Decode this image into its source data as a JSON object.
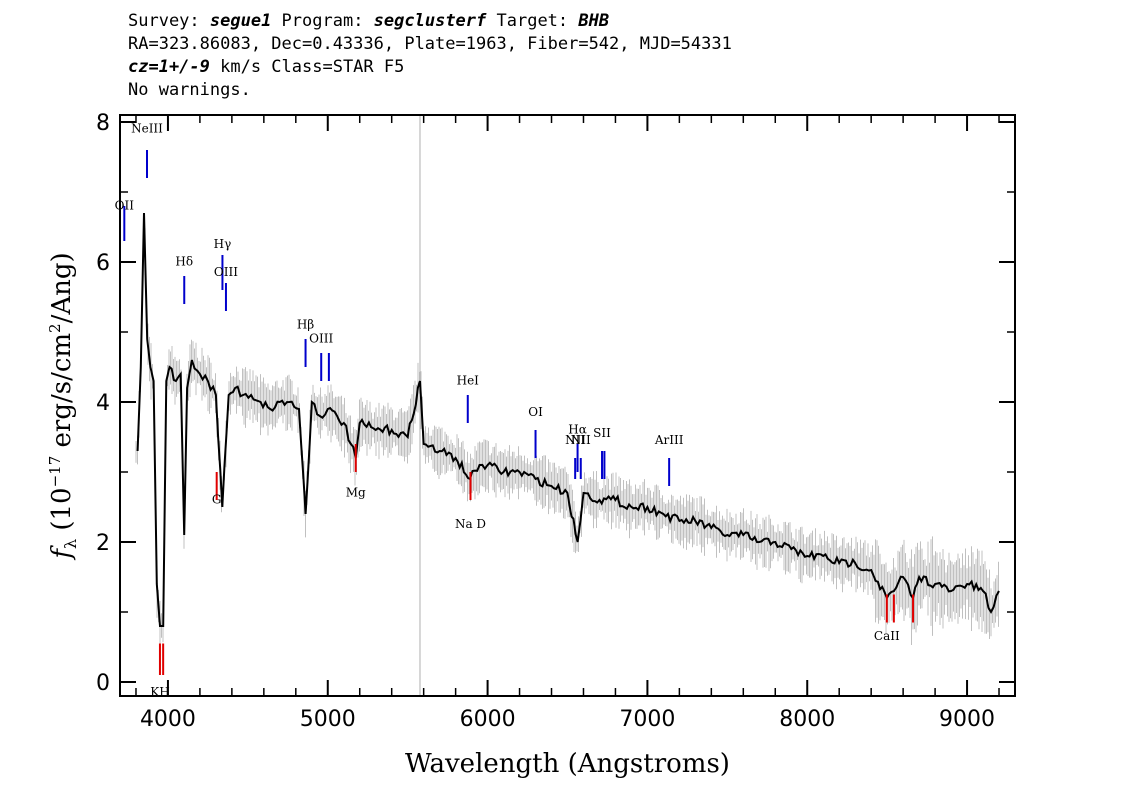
{
  "header": {
    "line1": {
      "survey_label": "Survey: ",
      "survey": "segue1",
      "program_label": " Program: ",
      "program": "segclusterf",
      "target_label": " Target: ",
      "target": "BHB"
    },
    "line2": "RA=323.86083, Dec=0.43336, Plate=1963, Fiber=542, MJD=54331",
    "line3": {
      "cz": "cz=1+/-9",
      "rest": " km/s Class=STAR F5"
    },
    "line4": "No warnings."
  },
  "chart_data": {
    "type": "line",
    "title": "",
    "xlabel": "Wavelength (Angstroms)",
    "ylabel": "f_λ (10^-17 erg/s/cm^2/Ang)",
    "ylabel_parts": {
      "f": "f",
      "sub": "λ",
      "a": " (10",
      "exp1": "−17",
      "b": " erg/s/cm",
      "exp2": "2",
      "c": "/Ang)"
    },
    "xlim": [
      3700,
      9300
    ],
    "ylim": [
      -0.2,
      8.1
    ],
    "xticks": [
      4000,
      5000,
      6000,
      7000,
      8000,
      9000
    ],
    "yticks": [
      0,
      2,
      4,
      6,
      8
    ],
    "colors": {
      "spectrum": "#000000",
      "noise": "#c0c0c0",
      "emission": "#0000cc",
      "absorption": "#e00000",
      "vline": "#b0b0b0"
    },
    "vline_x": 5577,
    "series": [
      {
        "name": "spectrum",
        "x": [
          3810,
          3830,
          3850,
          3870,
          3890,
          3910,
          3930,
          3950,
          3970,
          3990,
          4010,
          4050,
          4080,
          4102,
          4120,
          4150,
          4200,
          4250,
          4300,
          4340,
          4380,
          4420,
          4470,
          4520,
          4580,
          4640,
          4700,
          4760,
          4820,
          4861,
          4900,
          4950,
          5000,
          5100,
          5175,
          5200,
          5300,
          5400,
          5500,
          5577,
          5600,
          5700,
          5800,
          5890,
          5950,
          6000,
          6100,
          6200,
          6300,
          6400,
          6500,
          6563,
          6600,
          6700,
          6800,
          6900,
          7000,
          7100,
          7200,
          7300,
          7400,
          7500,
          7600,
          7700,
          7800,
          7900,
          8000,
          8100,
          8200,
          8300,
          8400,
          8498,
          8542,
          8600,
          8662,
          8700,
          8800,
          8900,
          9000,
          9100,
          9150,
          9200
        ],
        "y": [
          3.3,
          4.5,
          6.7,
          4.9,
          4.5,
          4.3,
          1.4,
          0.8,
          0.8,
          4.3,
          4.5,
          4.3,
          4.4,
          2.1,
          4.2,
          4.6,
          4.4,
          4.3,
          4.1,
          2.5,
          4.1,
          4.2,
          4.1,
          4.1,
          4.0,
          3.9,
          4.0,
          4.0,
          3.9,
          2.4,
          4.0,
          3.8,
          3.9,
          3.7,
          3.2,
          3.7,
          3.6,
          3.6,
          3.5,
          4.3,
          3.4,
          3.3,
          3.2,
          2.9,
          3.1,
          3.1,
          3.0,
          3.0,
          2.9,
          2.8,
          2.7,
          2.0,
          2.7,
          2.6,
          2.6,
          2.5,
          2.5,
          2.4,
          2.3,
          2.3,
          2.2,
          2.1,
          2.1,
          2.0,
          2.0,
          1.9,
          1.8,
          1.8,
          1.7,
          1.7,
          1.6,
          1.2,
          1.3,
          1.5,
          1.2,
          1.5,
          1.4,
          1.3,
          1.4,
          1.3,
          1.0,
          1.3
        ]
      }
    ],
    "lines": [
      {
        "name": "OII",
        "x": 3727,
        "y0": 6.3,
        "y1": 6.8,
        "kind": "emission",
        "label_y": 6.75
      },
      {
        "name": "NeIII",
        "x": 3869,
        "y0": 7.2,
        "y1": 7.6,
        "kind": "emission",
        "label_y": 7.85
      },
      {
        "name": "Hδ",
        "x": 4102,
        "y0": 5.4,
        "y1": 5.8,
        "kind": "emission",
        "label_y": 5.95
      },
      {
        "name": "Hγ",
        "x": 4341,
        "y0": 5.6,
        "y1": 6.1,
        "kind": "emission",
        "label_y": 6.2
      },
      {
        "name": "OIII",
        "x": 4363,
        "y0": 5.3,
        "y1": 5.7,
        "kind": "emission",
        "label_y": 5.8
      },
      {
        "name": "Hβ",
        "x": 4861,
        "y0": 4.5,
        "y1": 4.9,
        "kind": "emission",
        "label_y": 5.05
      },
      {
        "name": "OIII",
        "x": 4959,
        "y0": 4.3,
        "y1": 4.7,
        "kind": "emission",
        "label_y": 4.85
      },
      {
        "name": "",
        "x": 5007,
        "y0": 4.3,
        "y1": 4.7,
        "kind": "emission",
        "label_y": 0
      },
      {
        "name": "HeI",
        "x": 5876,
        "y0": 3.7,
        "y1": 4.1,
        "kind": "emission",
        "label_y": 4.25
      },
      {
        "name": "OI",
        "x": 6300,
        "y0": 3.2,
        "y1": 3.6,
        "kind": "emission",
        "label_y": 3.8
      },
      {
        "name": "NII",
        "x": 6548,
        "y0": 2.9,
        "y1": 3.2,
        "kind": "emission",
        "label_y": 3.4
      },
      {
        "name": "Hα",
        "x": 6563,
        "y0": 3.0,
        "y1": 3.4,
        "kind": "emission",
        "label_y": 3.55
      },
      {
        "name": "NII",
        "x": 6583,
        "y0": 2.9,
        "y1": 3.2,
        "kind": "emission",
        "label_y": 3.4
      },
      {
        "name": "SII",
        "x": 6716,
        "y0": 2.9,
        "y1": 3.3,
        "kind": "emission",
        "label_y": 3.5
      },
      {
        "name": "",
        "x": 6731,
        "y0": 2.9,
        "y1": 3.3,
        "kind": "emission",
        "label_y": 0
      },
      {
        "name": "ArIII",
        "x": 7136,
        "y0": 2.8,
        "y1": 3.2,
        "kind": "emission",
        "label_y": 3.4
      },
      {
        "name": "KH",
        "x": 3950,
        "y0": 0.1,
        "y1": 0.55,
        "kind": "absorption",
        "label_y": -0.2
      },
      {
        "name": "",
        "x": 3970,
        "y0": 0.1,
        "y1": 0.55,
        "kind": "absorption",
        "label_y": 0
      },
      {
        "name": "G",
        "x": 4305,
        "y0": 2.6,
        "y1": 3.0,
        "kind": "absorption",
        "label_y": 2.55
      },
      {
        "name": "Mg",
        "x": 5175,
        "y0": 3.0,
        "y1": 3.4,
        "kind": "absorption",
        "label_y": 2.65
      },
      {
        "name": "Na D",
        "x": 5893,
        "y0": 2.6,
        "y1": 3.0,
        "kind": "absorption",
        "label_y": 2.2
      },
      {
        "name": "CaII",
        "x": 8498,
        "y0": 0.85,
        "y1": 1.25,
        "kind": "absorption",
        "label_y": 0.6
      },
      {
        "name": "",
        "x": 8542,
        "y0": 0.85,
        "y1": 1.25,
        "kind": "absorption",
        "label_y": 0
      },
      {
        "name": "",
        "x": 8662,
        "y0": 0.85,
        "y1": 1.25,
        "kind": "absorption",
        "label_y": 0
      }
    ]
  }
}
